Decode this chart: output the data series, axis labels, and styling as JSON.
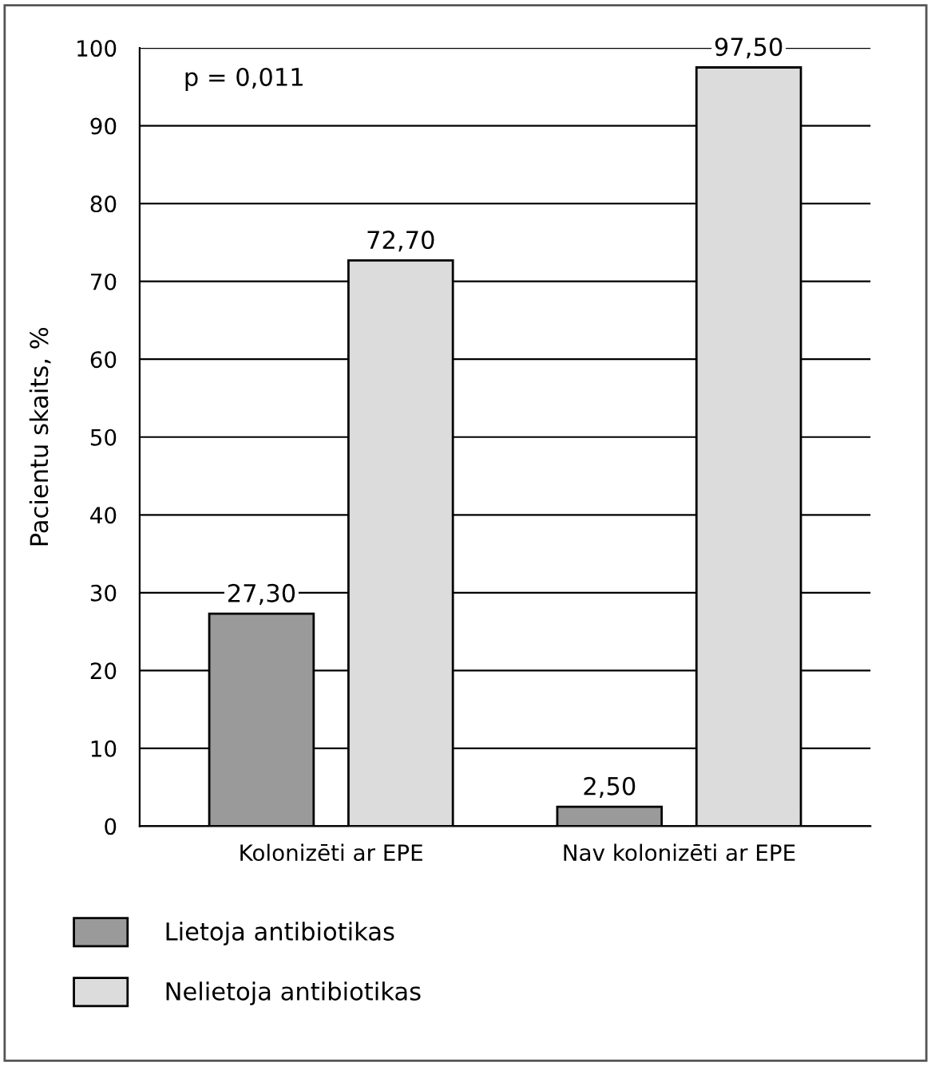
{
  "chart_data": {
    "type": "bar",
    "ylabel": "Pacientu skaits, %",
    "categories": [
      "Kolonizēti ar EPE",
      "Nav kolonizēti ar EPE"
    ],
    "series": [
      {
        "name": "Lietoja antibiotikas",
        "color": "#9a9a9a",
        "values": [
          27.3,
          2.5
        ],
        "value_labels": [
          "27,30",
          "2,50"
        ]
      },
      {
        "name": "Nelietoja antibiotikas",
        "color": "#dcdcdc",
        "values": [
          72.7,
          97.5
        ],
        "value_labels": [
          "72,70",
          "97,50"
        ]
      }
    ],
    "ylim": [
      0,
      100
    ],
    "yticks": [
      0,
      10,
      20,
      30,
      40,
      50,
      60,
      70,
      80,
      90,
      100
    ],
    "grid": "y",
    "legend": "bottom",
    "annotations": [
      {
        "text": "p = 0,011"
      }
    ]
  }
}
